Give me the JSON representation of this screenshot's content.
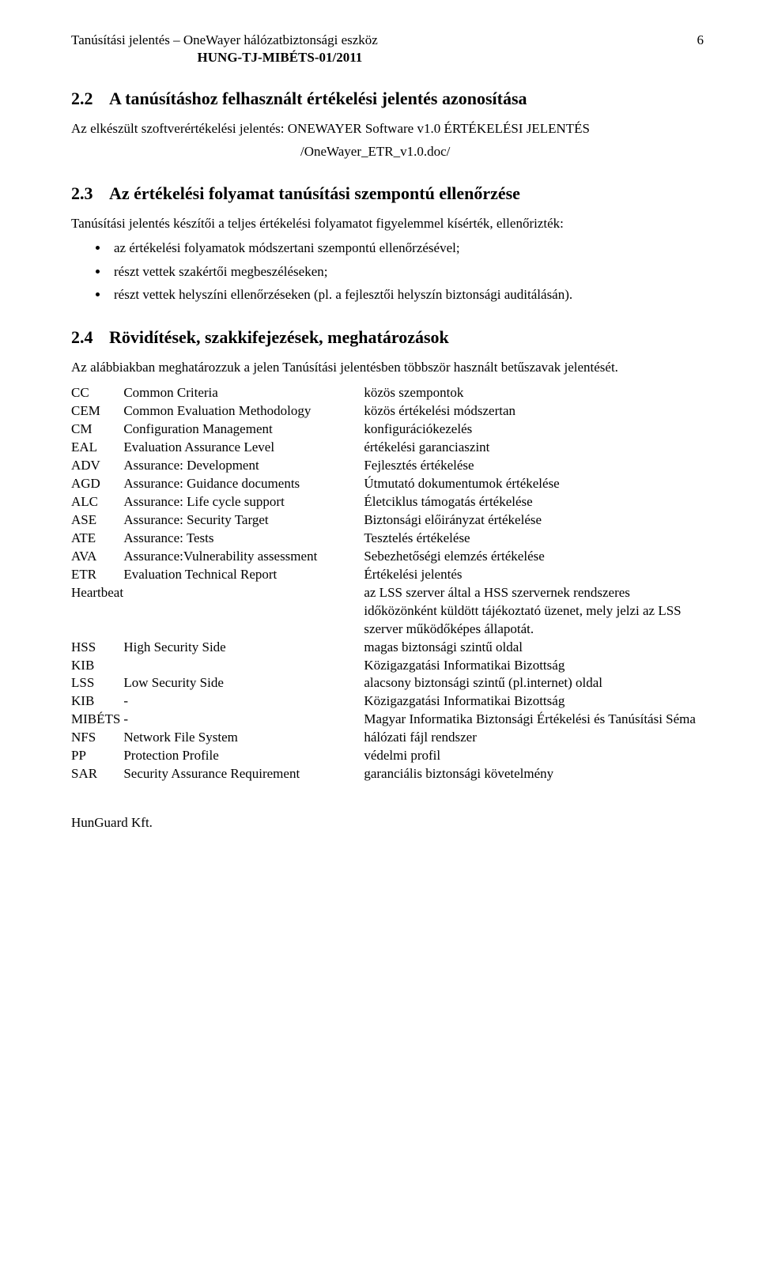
{
  "header": {
    "title_left": "Tanúsítási jelentés – OneWayer hálózatbiztonsági eszköz",
    "subtitle": "HUNG-TJ-MIBÉTS-01/2011",
    "page_number": "6"
  },
  "s22": {
    "num": "2.2",
    "title": "A tanúsításhoz felhasznált értékelési jelentés azonosítása",
    "p1": "Az elkészült szoftverértékelési jelentés: ONEWAYER Software v1.0 ÉRTÉKELÉSI JELENTÉS",
    "p2": "/OneWayer_ETR_v1.0.doc/"
  },
  "s23": {
    "num": "2.3",
    "title": "Az értékelési folyamat tanúsítási szempontú ellenőrzése",
    "p1": "Tanúsítási jelentés készítői a teljes értékelési folyamatot figyelemmel kísérték, ellenőrizték:",
    "b1": "az értékelési folyamatok módszertani szempontú ellenőrzésével;",
    "b2": "részt vettek szakértői megbeszéléseken;",
    "b3": "részt vettek helyszíni ellenőrzéseken (pl. a fejlesztői helyszín biztonsági auditálásán)."
  },
  "s24": {
    "num": "2.4",
    "title": "Rövidítések, szakkifejezések, meghatározások",
    "p1": "Az alábbiakban meghatározzuk a jelen Tanúsítási jelentésben többször használt betűszavak jelentését."
  },
  "abbr": {
    "rows": [
      {
        "a": "CC",
        "sub": "",
        "exp": "Common Criteria",
        "mean": "közös szempontok"
      },
      {
        "a": "CEM",
        "sub": "",
        "exp": "Common Evaluation Methodology",
        "mean": "közös értékelési módszertan"
      },
      {
        "a": "CM",
        "sub": "",
        "exp": "Configuration Management",
        "mean": "konfigurációkezelés"
      },
      {
        "a": "EAL",
        "sub": "",
        "exp": "Evaluation Assurance Level",
        "mean": "értékelési garanciaszint"
      },
      {
        "a": "",
        "sub": "ADV",
        "exp": "Assurance: Development",
        "mean": "Fejlesztés értékelése"
      },
      {
        "a": "",
        "sub": "AGD",
        "exp": "Assurance: Guidance documents",
        "mean": "Útmutató dokumentumok értékelése"
      },
      {
        "a": "",
        "sub": "ALC",
        "exp": "Assurance: Life cycle support",
        "mean": "Életciklus támogatás értékelése"
      },
      {
        "a": "",
        "sub": "ASE",
        "exp": "Assurance: Security Target",
        "mean": "Biztonsági előirányzat értékelése"
      },
      {
        "a": "",
        "sub": "ATE",
        "exp": "Assurance: Tests",
        "mean": "Tesztelés értékelése"
      },
      {
        "a": "",
        "sub": "AVA",
        "exp": "Assurance:Vulnerability assessment",
        "mean": "Sebezhetőségi elemzés értékelése"
      },
      {
        "a": "ETR",
        "sub": "",
        "exp": "Evaluation Technical Report",
        "mean": "Értékelési jelentés"
      },
      {
        "a": "Heartbeat",
        "sub": "",
        "exp": "",
        "mean": "az LSS szerver által a HSS szervernek rendszeres időközönként küldött tájékoztató üzenet, mely jelzi az LSS szerver működőképes állapotát."
      },
      {
        "a": "HSS",
        "sub": "",
        "exp": "High Security Side",
        "mean": "magas biztonsági szintű oldal"
      },
      {
        "a": "KIB",
        "sub": "",
        "exp": "",
        "mean": "Közigazgatási Informatikai Bizottság"
      },
      {
        "a": "LSS",
        "sub": "",
        "exp": "Low Security Side",
        "mean": "alacsony biztonsági szintű (pl.internet) oldal"
      },
      {
        "a": "KIB",
        "sub": "",
        "exp": "-",
        "mean": "Közigazgatási Informatikai Bizottság"
      },
      {
        "a": "MIBÉTS",
        "sub": "",
        "exp": "-",
        "mean": "Magyar Informatika Biztonsági Értékelési és Tanúsítási Séma"
      },
      {
        "a": "NFS",
        "sub": "",
        "exp": "Network File System",
        "mean": "hálózati fájl rendszer"
      },
      {
        "a": "PP",
        "sub": "",
        "exp": "Protection Profile",
        "mean": "védelmi profil"
      },
      {
        "a": "SAR",
        "sub": "",
        "exp": "Security Assurance Requirement",
        "mean": "garanciális biztonsági követelmény"
      }
    ]
  },
  "footer": {
    "text": "HunGuard Kft."
  }
}
